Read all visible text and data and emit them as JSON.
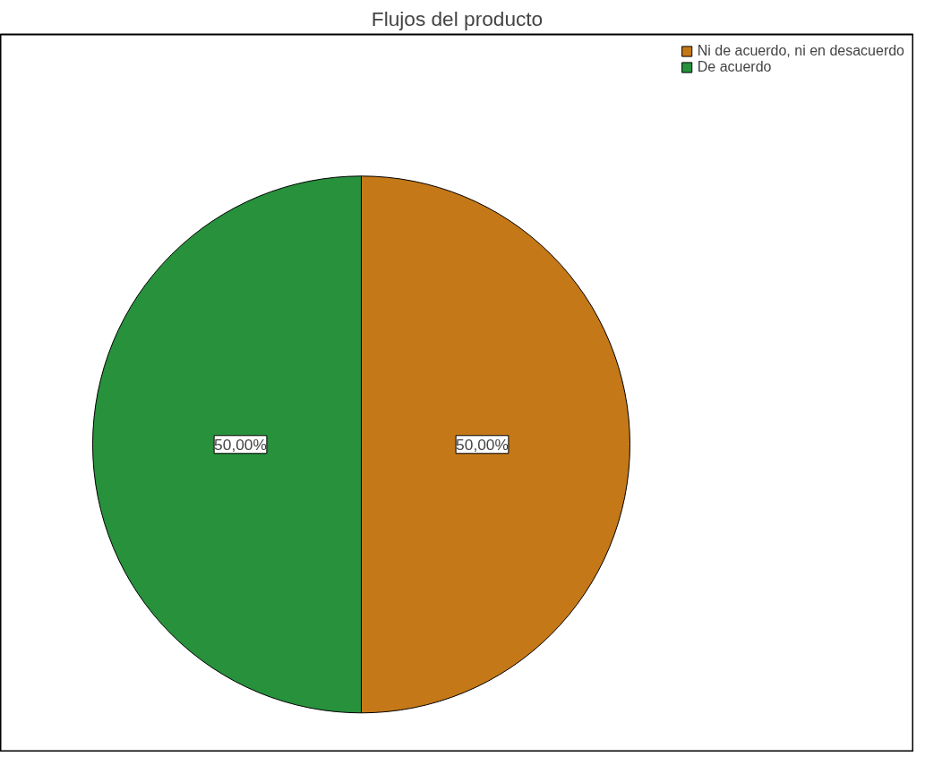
{
  "chart_data": {
    "type": "pie",
    "title": "Flujos del producto",
    "categories": [
      "Ni de acuerdo, ni en desacuerdo",
      "De acuerdo"
    ],
    "values": [
      50,
      50
    ],
    "colors": [
      "#c47818",
      "#27913c"
    ],
    "value_labels": [
      "50,00%",
      "50,00%"
    ],
    "legend": "top right"
  }
}
